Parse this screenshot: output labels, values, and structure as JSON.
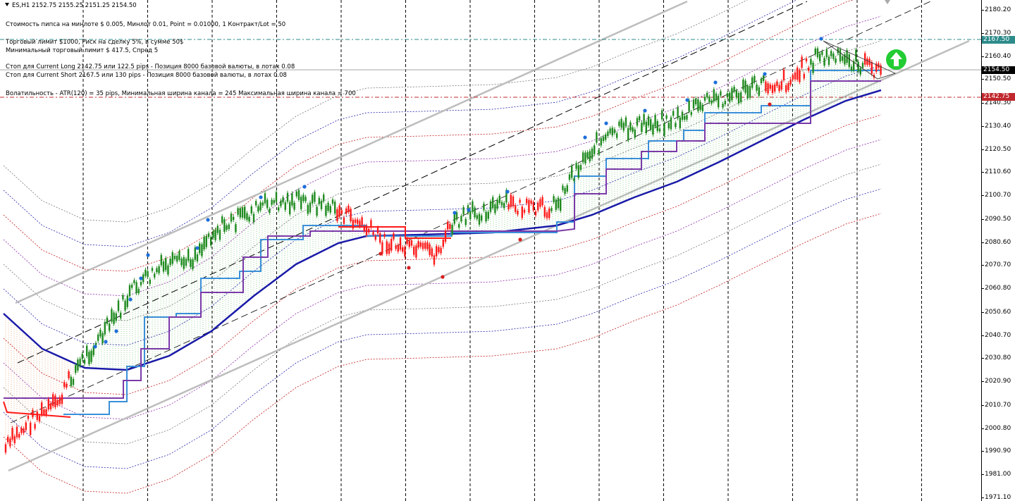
{
  "header": {
    "symbol_line": "ES,H1  2152.75 2155.25 2151.25 2154.50"
  },
  "info_lines": [
    "Стоимость пипса на минлоте  $ 0.005,   Минлот 0.01,   Point = 0.01000,  1 Контракт/Lot = 50",
    "Торговый лимит  $1000, Риск на сделку 5%,  в сумме 50$",
    "Минимальный торговый лимит  $ 417.5,   Спред  5",
    "Стоп для Current Long  2142.75  или   122.5 pips -  Позиция 8000 базовой валюты,   в лотах 0.08",
    "Стоп для Current Short 2167.5  или   130 pips -  Позиция 8000 базовой валюты,   в лотах 0.08",
    "Волатильность - ATR(120) = 35 pips,  Минимальная ширина канала = 245    Максимальная ширина канала = 700"
  ],
  "price_axis": {
    "ticks": [
      "2180.20",
      "2170.30",
      "2160.40",
      "2150.50",
      "2140.30",
      "2130.40",
      "2120.50",
      "2110.60",
      "2100.70",
      "2090.50",
      "2080.60",
      "2070.70",
      "2060.80",
      "2050.60",
      "2040.70",
      "2030.80",
      "2020.90",
      "2010.70",
      "2000.80",
      "1990.90",
      "1981.00",
      "1971.10"
    ],
    "price_tags": [
      {
        "label": "2167.50",
        "value": 2167.5,
        "bg": "#2e8b8b",
        "fg": "#ffffff"
      },
      {
        "label": "2154.50",
        "value": 2154.5,
        "bg": "#000000",
        "fg": "#ffffff"
      },
      {
        "label": "2142.75",
        "value": 2142.75,
        "bg": "#c0282d",
        "fg": "#ffffff"
      }
    ]
  },
  "colors": {
    "bull": "#1f8a1f",
    "bear": "#ff1a1a",
    "ma_blue": "#1a1aa8",
    "stop_light": "#3a8fd8",
    "stop_violet": "#7a3aa8",
    "channel_gray": "#bdbdbd",
    "level_long": "#c0282d",
    "level_short": "#2e8b8b",
    "arrow": "#22cc33"
  },
  "indicator": {
    "signal": "buy",
    "icon": "up-arrow-icon"
  }
}
